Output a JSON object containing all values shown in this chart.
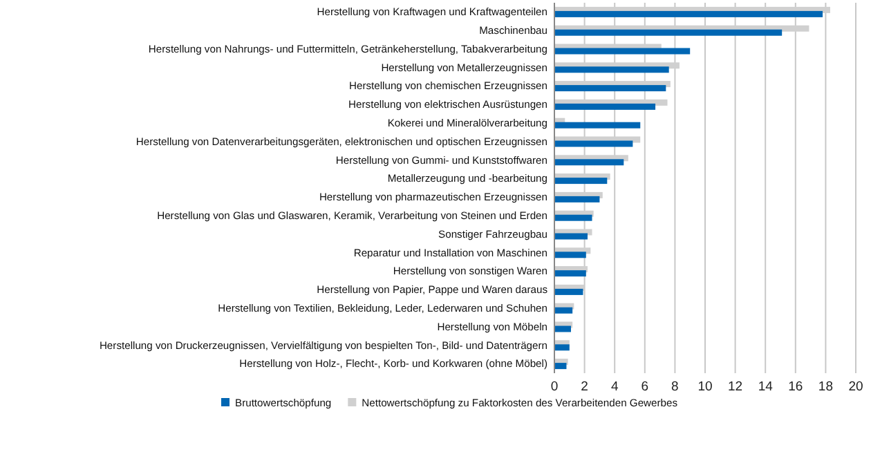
{
  "chart_data": {
    "type": "bar",
    "orientation": "horizontal",
    "categories": [
      "Herstellung von Kraftwagen und Kraftwagenteilen",
      "Maschinenbau",
      "Herstellung von Nahrungs- und Futtermitteln, Getränkeherstellung, Tabakverarbeitung",
      "Herstellung von Metallerzeugnissen",
      "Herstellung von chemischen Erzeugnissen",
      "Herstellung von elektrischen Ausrüstungen",
      "Kokerei und Mineralölverarbeitung",
      "Herstellung von Datenverarbeitungsgeräten, elektronischen und optischen Erzeugnissen",
      "Herstellung von Gummi- und Kunststoffwaren",
      "Metallerzeugung und -bearbeitung",
      "Herstellung von pharmazeutischen Erzeugnissen",
      "Herstellung von Glas und Glaswaren, Keramik, Verarbeitung von Steinen und Erden",
      "Sonstiger Fahrzeugbau",
      "Reparatur und Installation von Maschinen",
      "Herstellung von sonstigen Waren",
      "Herstellung von Papier, Pappe und Waren daraus",
      "Herstellung von Textilien, Bekleidung, Leder, Lederwaren und Schuhen",
      "Herstellung von Möbeln",
      "Herstellung von Druckerzeugnissen, Vervielfältigung von bespielten Ton-, Bild- und Datenträgern",
      "Herstellung von Holz-, Flecht-, Korb- und Korkwaren (ohne Möbel)"
    ],
    "series": [
      {
        "name": "Bruttowertschöpfung",
        "color": "#0066b3",
        "values": [
          17.8,
          15.1,
          9.0,
          7.6,
          7.4,
          6.7,
          5.7,
          5.2,
          4.6,
          3.5,
          3.0,
          2.5,
          2.2,
          2.1,
          2.1,
          1.9,
          1.2,
          1.1,
          1.0,
          0.8
        ]
      },
      {
        "name": "Nettowertschöpfung zu Faktorkosten des Verarbeitenden Gewerbes",
        "color": "#d0d0d0",
        "values": [
          18.3,
          16.9,
          7.1,
          8.3,
          7.7,
          7.5,
          0.7,
          5.7,
          4.9,
          3.7,
          3.2,
          2.6,
          2.5,
          2.4,
          2.2,
          2.0,
          1.3,
          1.2,
          1.0,
          0.9
        ]
      }
    ],
    "xlim": [
      0,
      20
    ],
    "xticks": [
      0,
      2,
      4,
      6,
      8,
      10,
      12,
      14,
      16,
      18,
      20
    ],
    "grid": "x",
    "legend": "bottom"
  }
}
